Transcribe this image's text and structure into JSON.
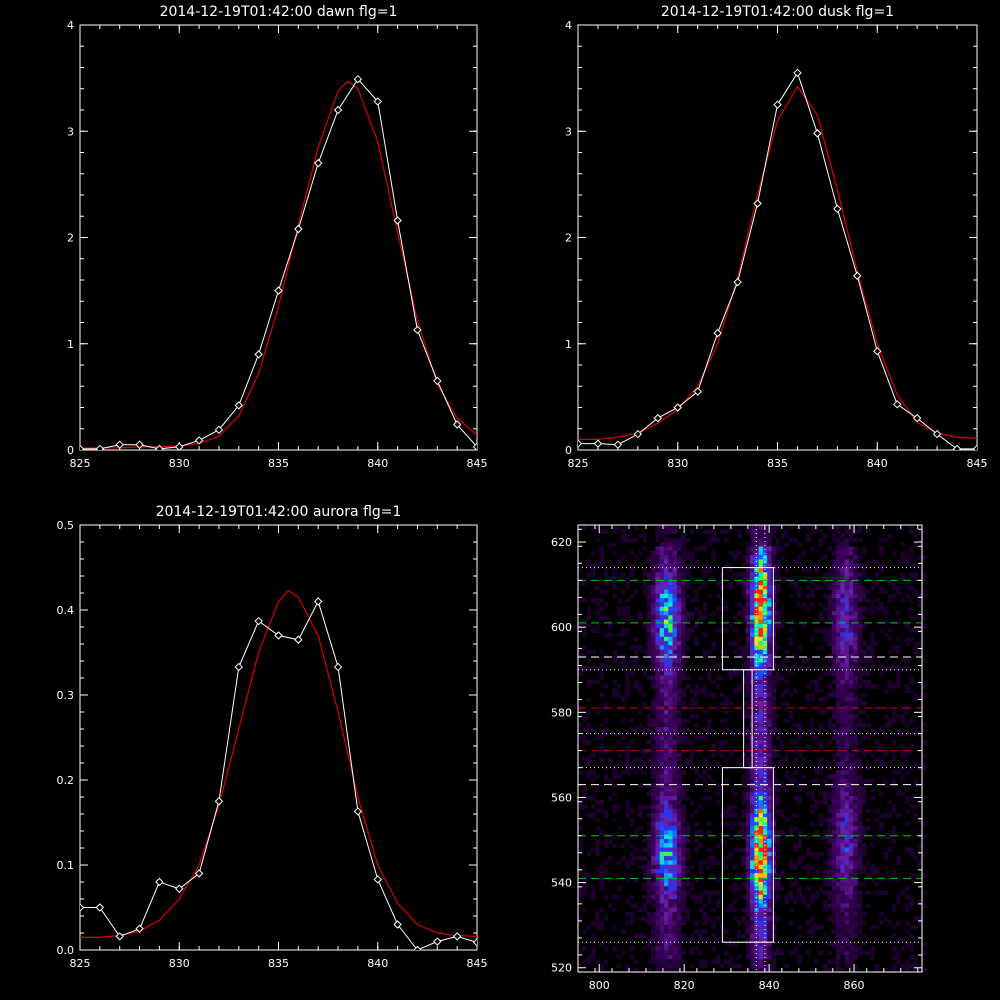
{
  "chart_data": [
    {
      "type": "line",
      "title": "2014-12-19T01:42:00 dawn flg=1",
      "xlabel": "",
      "ylabel": "",
      "xlim": [
        825,
        845
      ],
      "ylim": [
        0,
        4
      ],
      "xticks": [
        825,
        830,
        835,
        840,
        845
      ],
      "yticks": [
        0,
        1,
        2,
        3,
        4
      ],
      "series": [
        {
          "role": "data",
          "color": "#ffffff",
          "marker": "diamond",
          "x": [
            825,
            826,
            827,
            828,
            829,
            830,
            831,
            832,
            833,
            834,
            835,
            836,
            837,
            838,
            839,
            840,
            841,
            842,
            843,
            844,
            845
          ],
          "y": [
            0.01,
            0.01,
            0.05,
            0.05,
            0.01,
            0.03,
            0.09,
            0.19,
            0.42,
            0.9,
            1.5,
            2.08,
            2.7,
            3.2,
            3.49,
            3.28,
            2.16,
            1.13,
            0.65,
            0.24,
            0.03
          ]
        },
        {
          "role": "fit",
          "color": "#cc0000",
          "x": [
            825,
            826,
            827,
            828,
            829,
            830,
            831,
            832,
            833,
            834,
            835,
            836,
            837,
            838,
            838.5,
            839,
            840,
            841,
            842,
            843,
            844,
            845
          ],
          "y": [
            0.02,
            0.02,
            0.02,
            0.03,
            0.03,
            0.04,
            0.06,
            0.13,
            0.32,
            0.72,
            1.35,
            2.12,
            2.85,
            3.38,
            3.47,
            3.4,
            2.9,
            2.05,
            1.22,
            0.62,
            0.3,
            0.14
          ]
        }
      ]
    },
    {
      "type": "line",
      "title": "2014-12-19T01:42:00 dusk flg=1",
      "xlabel": "",
      "ylabel": "",
      "xlim": [
        825,
        845
      ],
      "ylim": [
        0,
        4
      ],
      "xticks": [
        825,
        830,
        835,
        840,
        845
      ],
      "yticks": [
        0,
        1,
        2,
        3,
        4
      ],
      "series": [
        {
          "role": "data",
          "color": "#ffffff",
          "marker": "diamond",
          "x": [
            825,
            826,
            827,
            828,
            829,
            830,
            831,
            832,
            833,
            834,
            835,
            836,
            837,
            838,
            839,
            840,
            841,
            842,
            843,
            844,
            845
          ],
          "y": [
            0.06,
            0.06,
            0.05,
            0.15,
            0.3,
            0.4,
            0.55,
            1.1,
            1.58,
            2.32,
            3.25,
            3.55,
            2.98,
            2.27,
            1.64,
            0.93,
            0.43,
            0.3,
            0.15,
            0.01,
            0.01
          ]
        },
        {
          "role": "fit",
          "color": "#cc0000",
          "x": [
            825,
            826,
            827,
            828,
            829,
            830,
            831,
            832,
            833,
            834,
            835,
            836,
            837,
            838,
            839,
            840,
            841,
            842,
            843,
            844,
            845
          ],
          "y": [
            0.1,
            0.1,
            0.12,
            0.16,
            0.25,
            0.38,
            0.6,
            1.0,
            1.62,
            2.4,
            3.1,
            3.42,
            3.15,
            2.45,
            1.68,
            1.0,
            0.52,
            0.26,
            0.16,
            0.12,
            0.11
          ]
        }
      ]
    },
    {
      "type": "line",
      "title": "2014-12-19T01:42:00 aurora flg=1",
      "xlabel": "",
      "ylabel": "",
      "xlim": [
        825,
        845
      ],
      "ylim": [
        0,
        0.5
      ],
      "xticks": [
        825,
        830,
        835,
        840,
        845
      ],
      "yticks": [
        0.0,
        0.1,
        0.2,
        0.3,
        0.4,
        0.5
      ],
      "series": [
        {
          "role": "data",
          "color": "#ffffff",
          "marker": "diamond",
          "x": [
            825,
            826,
            827,
            828,
            829,
            830,
            831,
            832,
            833,
            834,
            835,
            836,
            837,
            838,
            839,
            840,
            841,
            842,
            843,
            844,
            845
          ],
          "y": [
            0.05,
            0.05,
            0.016,
            0.025,
            0.08,
            0.072,
            0.09,
            0.175,
            0.333,
            0.387,
            0.37,
            0.365,
            0.41,
            0.333,
            0.163,
            0.083,
            0.03,
            0.0,
            0.01,
            0.016,
            0.009
          ]
        },
        {
          "role": "fit",
          "color": "#cc0000",
          "x": [
            825,
            826,
            827,
            828,
            829,
            830,
            831,
            832,
            833,
            834,
            835,
            835.5,
            836,
            837,
            838,
            839,
            840,
            841,
            842,
            843,
            844,
            845
          ],
          "y": [
            0.015,
            0.015,
            0.017,
            0.022,
            0.035,
            0.06,
            0.1,
            0.17,
            0.26,
            0.35,
            0.41,
            0.423,
            0.415,
            0.37,
            0.28,
            0.18,
            0.1,
            0.055,
            0.03,
            0.02,
            0.017,
            0.016
          ]
        }
      ]
    },
    {
      "type": "heatmap",
      "title": "",
      "xlabel": "",
      "ylabel": "",
      "xlim": [
        795,
        876
      ],
      "ylim": [
        519,
        624
      ],
      "xticks": [
        800,
        820,
        840,
        860
      ],
      "yticks": [
        520,
        540,
        560,
        580,
        600,
        620
      ],
      "colormap": [
        "#000000",
        "#3a005a",
        "#6b1fa8",
        "#1a3cff",
        "#00d8ff",
        "#27ff4a",
        "#ffe100",
        "#ff2000"
      ],
      "stripes": [
        {
          "x": 816,
          "width": 2.0,
          "peak": 0.55,
          "y_centers": [
            602,
            547
          ],
          "y_spread": 7
        },
        {
          "x": 838,
          "width": 1.5,
          "peak": 1.0,
          "y_centers": [
            604,
            547
          ],
          "y_spread": 8
        },
        {
          "x": 858,
          "width": 2.0,
          "peak": 0.28,
          "y_centers": [
            602,
            550
          ],
          "y_spread": 9
        }
      ],
      "boxes": [
        {
          "x0": 829,
          "x1": 841,
          "y0": 590,
          "y1": 614
        },
        {
          "x0": 829,
          "x1": 841,
          "y0": 526,
          "y1": 567
        },
        {
          "x0": 834,
          "x1": 836,
          "y0": 567,
          "y1": 590
        }
      ],
      "h_lines": [
        {
          "y": 611,
          "style": "dashed",
          "color": "#00cc00"
        },
        {
          "y": 601,
          "style": "dashed",
          "color": "#00cc00"
        },
        {
          "y": 551,
          "style": "dashed",
          "color": "#00cc00"
        },
        {
          "y": 541,
          "style": "dashed",
          "color": "#00cc00"
        },
        {
          "y": 593,
          "style": "dashed",
          "color": "#ffffff"
        },
        {
          "y": 563,
          "style": "dashed",
          "color": "#ffffff"
        },
        {
          "y": 581,
          "style": "dashed",
          "color": "#cc0000"
        },
        {
          "y": 571,
          "style": "dashed",
          "color": "#cc0000"
        },
        {
          "y": 614,
          "style": "dotted",
          "color": "#ffffff"
        },
        {
          "y": 590,
          "style": "dotted",
          "color": "#ffffff"
        },
        {
          "y": 575,
          "style": "dotted",
          "color": "#ffffff"
        },
        {
          "y": 567,
          "style": "dotted",
          "color": "#ffffff"
        },
        {
          "y": 526,
          "style": "dotted",
          "color": "#ffffff"
        }
      ],
      "v_lines": [
        {
          "x": 837,
          "style": "dotted",
          "color": "#ffffff"
        },
        {
          "x": 839,
          "style": "dotted",
          "color": "#ffffff"
        }
      ]
    }
  ]
}
